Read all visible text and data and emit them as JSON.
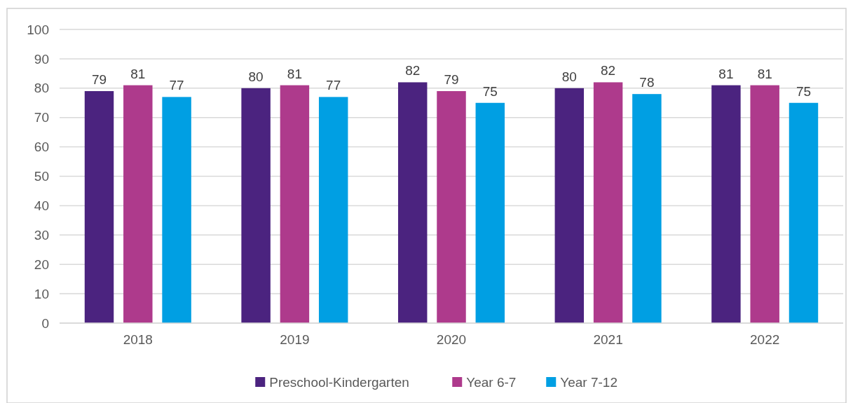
{
  "chart_data": {
    "type": "bar",
    "categories": [
      "2018",
      "2019",
      "2020",
      "2021",
      "2022"
    ],
    "series": [
      {
        "name": "Preschool-Kindergarten",
        "color": "#4b237f",
        "values": [
          79,
          80,
          82,
          80,
          81
        ]
      },
      {
        "name": "Year 6-7",
        "color": "#ae3a8c",
        "values": [
          81,
          81,
          79,
          82,
          81
        ]
      },
      {
        "name": "Year 7-12",
        "color": "#009fe3",
        "values": [
          77,
          77,
          75,
          78,
          75
        ]
      }
    ],
    "ylim": [
      0,
      100
    ],
    "yticks": [
      0,
      10,
      20,
      30,
      40,
      50,
      60,
      70,
      80,
      90,
      100
    ],
    "grid": "y",
    "legend": "bottom",
    "data_labels": true
  }
}
